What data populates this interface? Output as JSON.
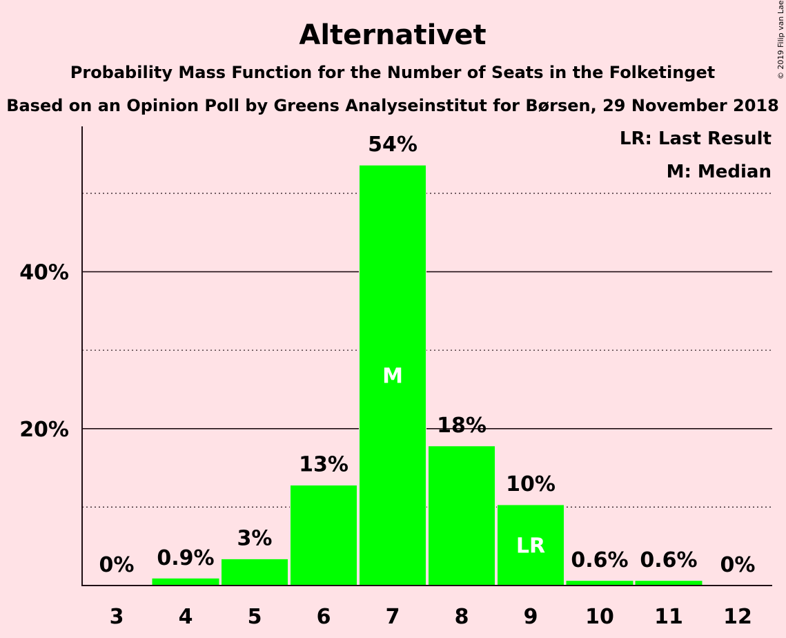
{
  "header": {
    "title": "Alternativet",
    "subtitle1": "Probability Mass Function for the Number of Seats in the Folketinget",
    "subtitle2": "Based on an Opinion Poll by Greens Analyseinstitut for Børsen, 29 November 2018"
  },
  "legend": {
    "lr": "LR: Last Result",
    "median": "M: Median"
  },
  "copyright": "© 2019 Filip van Laenen",
  "colors": {
    "background": "#FFE2E6",
    "bar": "#00FF00",
    "text": "#1F0E14"
  },
  "chart_data": {
    "type": "bar",
    "categories": [
      "3",
      "4",
      "5",
      "6",
      "7",
      "8",
      "9",
      "10",
      "11",
      "12"
    ],
    "values": [
      0,
      0.9,
      3.4,
      12.8,
      53.6,
      17.8,
      10.3,
      0.6,
      0.6,
      0
    ],
    "data_labels": [
      "0%",
      "0.9%",
      "3%",
      "13%",
      "54%",
      "18%",
      "10%",
      "0.6%",
      "0.6%",
      "0%"
    ],
    "y_ticks": [
      {
        "value": 20,
        "label": "20%"
      },
      {
        "value": 40,
        "label": "40%"
      }
    ],
    "dotted_gridlines": [
      10,
      30,
      50
    ],
    "ylim": [
      0,
      58.5
    ],
    "markers": [
      {
        "category": "7",
        "text": "M"
      },
      {
        "category": "9",
        "text": "LR"
      }
    ],
    "legend_position": "top-right"
  }
}
